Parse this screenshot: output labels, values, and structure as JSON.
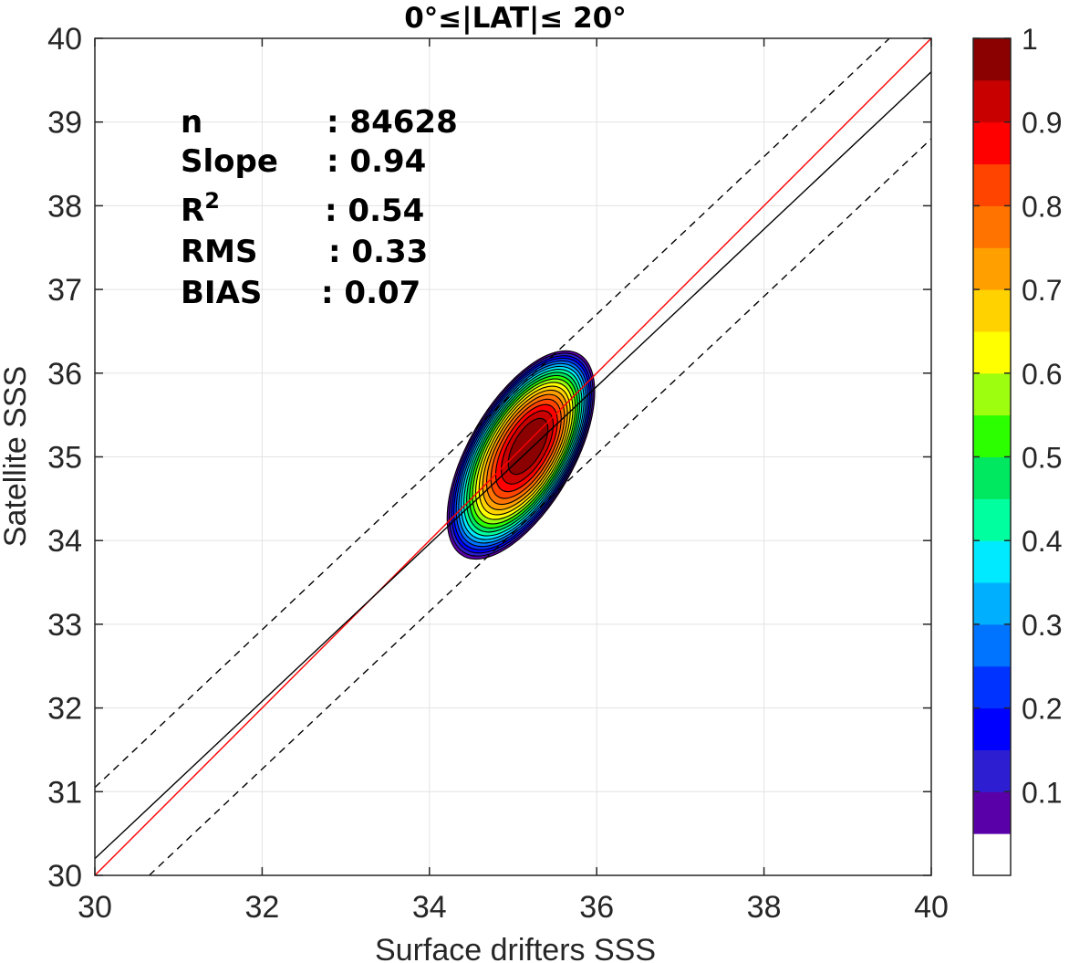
{
  "chart_data": {
    "type": "contour",
    "title": "0°≤|LAT|≤ 20°",
    "xlabel": "Surface drifters SSS",
    "ylabel": "Satellite SSS",
    "xlim": [
      30,
      40
    ],
    "ylim": [
      30,
      40
    ],
    "xticks": [
      "30",
      "32",
      "34",
      "36",
      "38",
      "40"
    ],
    "yticks": [
      "30",
      "31",
      "32",
      "33",
      "34",
      "35",
      "36",
      "37",
      "38",
      "39",
      "40"
    ],
    "grid": true,
    "stats": [
      {
        "label": "n",
        "value": ": 84628"
      },
      {
        "label": "Slope",
        "value": ": 0.94"
      },
      {
        "label": "R",
        "label_sup": "2",
        "value": ": 0.54"
      },
      {
        "label": "RMS",
        "value": ": 0.33"
      },
      {
        "label": "BIAS",
        "value": ": 0.07"
      }
    ],
    "lines": [
      {
        "role": "one-to-one",
        "color": "#ff0000",
        "style": "solid",
        "x": [
          30,
          40
        ],
        "y": [
          30,
          40
        ]
      },
      {
        "role": "regression",
        "color": "#000000",
        "style": "solid",
        "x": [
          30,
          40
        ],
        "y": [
          30.2,
          39.6
        ]
      },
      {
        "role": "upper-bound",
        "color": "#000000",
        "style": "dashed",
        "x": [
          30,
          39.5
        ],
        "y": [
          31.05,
          40
        ]
      },
      {
        "role": "lower-bound",
        "color": "#000000",
        "style": "dashed",
        "x": [
          30.65,
          40
        ],
        "y": [
          30,
          38.8
        ]
      }
    ],
    "density_center": [
      35.2,
      35.15
    ],
    "density_peak": 1.0,
    "density_orientation_deg": 60,
    "contour_levels": [
      0.05,
      0.1,
      0.15,
      0.2,
      0.25,
      0.3,
      0.35,
      0.4,
      0.45,
      0.5,
      0.55,
      0.6,
      0.65,
      0.7,
      0.75,
      0.8,
      0.85,
      0.9,
      0.95
    ],
    "colorbar": {
      "ticks": [
        "0.1",
        "0.2",
        "0.3",
        "0.4",
        "0.5",
        "0.6",
        "0.7",
        "0.8",
        "0.9",
        "1"
      ],
      "colors": [
        "#ffffff",
        "#5a00a8",
        "#2d1fd1",
        "#0000ff",
        "#0033ff",
        "#0073ff",
        "#00b0ff",
        "#00eaff",
        "#00ff9f",
        "#00e860",
        "#2bff00",
        "#9dff0f",
        "#ffff00",
        "#ffd200",
        "#ffa000",
        "#ff7300",
        "#ff4400",
        "#ff0000",
        "#c80000",
        "#8b0000"
      ]
    }
  }
}
